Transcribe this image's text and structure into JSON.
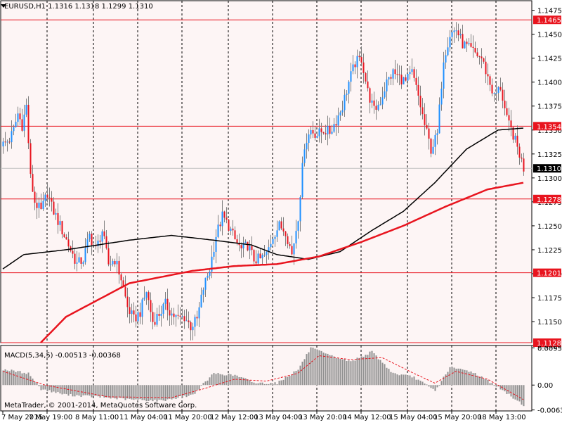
{
  "app": {
    "symbol_header": "EURUSD,H1  1.1316 1.1318 1.1299 1.1310",
    "copyright": "MetaTrader, © 2001-2014, MetaQuotes Software Corp."
  },
  "colors": {
    "background": "#ffffff",
    "plot_background": "#fdf5f5",
    "bull_candle": "#1e90ff",
    "bear_candle": "#e8141e",
    "wick": "#808080",
    "sma_fast": "#000000",
    "sma_slow": "#e8141e",
    "level_line": "#e8141e",
    "price_label_bg": "#e8141e",
    "current_price_bg": "#000000",
    "macd_bar": "#909090",
    "macd_signal": "#e8141e",
    "grid": "#000000"
  },
  "chart_data": [
    {
      "type": "candlestick",
      "title": "EURUSD,H1  1.1316 1.1318 1.1299 1.1310",
      "y_axis_position": "right",
      "ylim": [
        1.1128,
        1.1485
      ],
      "y_ticks": [
        "1.1475",
        "1.1450",
        "1.1425",
        "1.1400",
        "1.1375",
        "1.1350",
        "1.1325",
        "1.1300",
        "1.1275",
        "1.1250",
        "1.1225",
        "1.1200",
        "1.1175",
        "1.1150",
        "1.1125"
      ],
      "x_labels": [
        "7 May 2015",
        "7 May 19:00",
        "8 May 11:00",
        "11 May 04:00",
        "11 May 20:00",
        "12 May 12:00",
        "13 May 04:00",
        "13 May 20:00",
        "14 May 12:00",
        "15 May 04:00",
        "15 May 20:00",
        "18 May 13:00"
      ],
      "vertical_grid_after_label": true,
      "horizontal_levels": [
        {
          "value": 1.1465,
          "label": "1.1465"
        },
        {
          "value": 1.1354,
          "label": "1.1354"
        },
        {
          "value": 1.1278,
          "label": "1.1278"
        },
        {
          "value": 1.1201,
          "label": "1.1201"
        },
        {
          "value": 1.1128,
          "label": "1.1128"
        }
      ],
      "current_price": {
        "value": 1.131,
        "label": "1.1310"
      },
      "close_anchors": [
        [
          0,
          1.1335
        ],
        [
          3,
          1.134
        ],
        [
          5,
          1.135
        ],
        [
          7,
          1.1367
        ],
        [
          9,
          1.1355
        ],
        [
          11,
          1.1375
        ],
        [
          13,
          1.13
        ],
        [
          15,
          1.1275
        ],
        [
          18,
          1.1265
        ],
        [
          21,
          1.1285
        ],
        [
          23,
          1.127
        ],
        [
          26,
          1.1255
        ],
        [
          29,
          1.124
        ],
        [
          32,
          1.1225
        ],
        [
          35,
          1.121
        ],
        [
          38,
          1.1215
        ],
        [
          41,
          1.124
        ],
        [
          44,
          1.1225
        ],
        [
          47,
          1.1245
        ],
        [
          50,
          1.121
        ],
        [
          53,
          1.1215
        ],
        [
          56,
          1.1195
        ],
        [
          59,
          1.1165
        ],
        [
          62,
          1.1152
        ],
        [
          65,
          1.116
        ],
        [
          68,
          1.1182
        ],
        [
          71,
          1.115
        ],
        [
          74,
          1.1158
        ],
        [
          77,
          1.1168
        ],
        [
          80,
          1.1158
        ],
        [
          83,
          1.1153
        ],
        [
          86,
          1.1155
        ],
        [
          89,
          1.1145
        ],
        [
          92,
          1.1152
        ],
        [
          95,
          1.1185
        ],
        [
          98,
          1.1205
        ],
        [
          101,
          1.124
        ],
        [
          104,
          1.126
        ],
        [
          107,
          1.125
        ],
        [
          110,
          1.1235
        ],
        [
          113,
          1.1225
        ],
        [
          116,
          1.123
        ],
        [
          119,
          1.1215
        ],
        [
          122,
          1.1215
        ],
        [
          125,
          1.122
        ],
        [
          128,
          1.124
        ],
        [
          131,
          1.125
        ],
        [
          134,
          1.1245
        ],
        [
          137,
          1.122
        ],
        [
          140,
          1.126
        ],
        [
          143,
          1.1335
        ],
        [
          146,
          1.135
        ],
        [
          149,
          1.1345
        ],
        [
          152,
          1.135
        ],
        [
          155,
          1.1348
        ],
        [
          158,
          1.136
        ],
        [
          161,
          1.1375
        ],
        [
          164,
          1.14
        ],
        [
          167,
          1.142
        ],
        [
          170,
          1.1425
        ],
        [
          173,
          1.139
        ],
        [
          176,
          1.137
        ],
        [
          179,
          1.138
        ],
        [
          182,
          1.14
        ],
        [
          185,
          1.141
        ],
        [
          188,
          1.1405
        ],
        [
          191,
          1.14
        ],
        [
          194,
          1.141
        ],
        [
          197,
          1.1385
        ],
        [
          200,
          1.1355
        ],
        [
          203,
          1.133
        ],
        [
          206,
          1.1345
        ],
        [
          209,
          1.1425
        ],
        [
          212,
          1.145
        ],
        [
          215,
          1.1455
        ],
        [
          218,
          1.144
        ],
        [
          221,
          1.1435
        ],
        [
          224,
          1.143
        ],
        [
          227,
          1.1425
        ],
        [
          230,
          1.1405
        ],
        [
          233,
          1.1385
        ],
        [
          236,
          1.1395
        ],
        [
          239,
          1.136
        ],
        [
          242,
          1.1345
        ],
        [
          245,
          1.1325
        ],
        [
          247,
          1.131
        ]
      ],
      "series": [
        {
          "anchors": [
            [
              0,
              1.1205
            ],
            [
              10,
              1.122
            ],
            [
              30,
              1.1225
            ],
            [
              60,
              1.1235
            ],
            [
              80,
              1.124
            ],
            [
              100,
              1.1235
            ],
            [
              118,
              1.123
            ],
            [
              130,
              1.122
            ],
            [
              145,
              1.1215
            ],
            [
              160,
              1.1223
            ],
            [
              175,
              1.1245
            ],
            [
              190,
              1.1265
            ],
            [
              205,
              1.1295
            ],
            [
              220,
              1.133
            ],
            [
              235,
              1.135
            ],
            [
              247,
              1.1352
            ]
          ]
        },
        {
          "anchors": [
            [
              10,
              1.111
            ],
            [
              30,
              1.1155
            ],
            [
              60,
              1.119
            ],
            [
              90,
              1.1203
            ],
            [
              110,
              1.1208
            ],
            [
              130,
              1.121
            ],
            [
              150,
              1.1218
            ],
            [
              170,
              1.1233
            ],
            [
              190,
              1.125
            ],
            [
              210,
              1.127
            ],
            [
              230,
              1.1288
            ],
            [
              247,
              1.1295
            ]
          ]
        }
      ]
    },
    {
      "type": "bar",
      "title": "MACD(5,34,5) -0.00513 -0.00368",
      "ylim": [
        -0.0066,
        0.0101
      ],
      "y_ticks": [
        "0.0095",
        "0.00",
        "-0.00635"
      ],
      "anchors": [
        [
          0,
          0.004
        ],
        [
          12,
          0.003
        ],
        [
          18,
          -0.001
        ],
        [
          30,
          -0.0025
        ],
        [
          45,
          -0.003
        ],
        [
          60,
          -0.0037
        ],
        [
          75,
          -0.004
        ],
        [
          90,
          -0.0025
        ],
        [
          100,
          0.003
        ],
        [
          110,
          0.0025
        ],
        [
          120,
          0.0005
        ],
        [
          130,
          0.0005
        ],
        [
          140,
          0.004
        ],
        [
          146,
          0.0095
        ],
        [
          155,
          0.0075
        ],
        [
          165,
          0.006
        ],
        [
          175,
          0.0085
        ],
        [
          185,
          0.003
        ],
        [
          195,
          0.002
        ],
        [
          205,
          -0.0015
        ],
        [
          212,
          0.0045
        ],
        [
          222,
          0.0035
        ],
        [
          232,
          0.0005
        ],
        [
          240,
          -0.0025
        ],
        [
          247,
          -0.0051
        ]
      ],
      "signal_anchors": [
        [
          0,
          0.0035
        ],
        [
          20,
          0.0
        ],
        [
          50,
          -0.003
        ],
        [
          80,
          -0.0032
        ],
        [
          95,
          -0.001
        ],
        [
          110,
          0.0015
        ],
        [
          125,
          0.001
        ],
        [
          140,
          0.003
        ],
        [
          150,
          0.0075
        ],
        [
          165,
          0.0065
        ],
        [
          180,
          0.007
        ],
        [
          195,
          0.003
        ],
        [
          205,
          0.0005
        ],
        [
          215,
          0.0035
        ],
        [
          230,
          0.0015
        ],
        [
          247,
          -0.0037
        ]
      ]
    }
  ]
}
